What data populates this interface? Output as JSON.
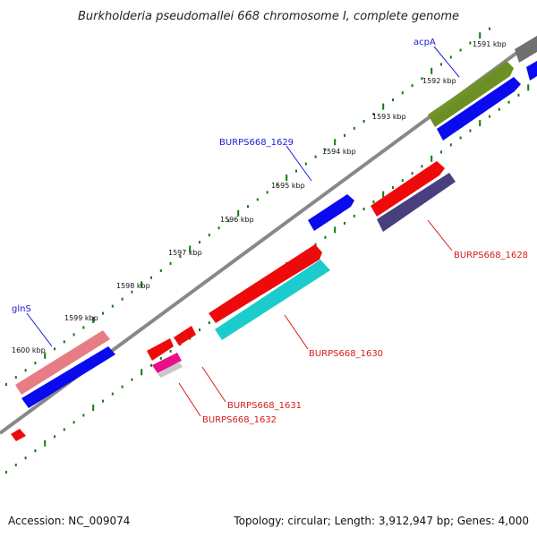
{
  "title": "Burkholderia pseudomallei 668 chromosome I, complete genome",
  "footer": {
    "accession": "Accession: NC_009074",
    "summary": "Topology: circular; Length: 3,912,947 bp; Genes: 4,000"
  },
  "scale_labels": [
    "1591 kbp",
    "1592 kbp",
    "1593 kbp",
    "1594 kbp",
    "1595 kbp",
    "1596 kbp",
    "1597 kbp",
    "1598 kbp",
    "1599 kbp",
    "1600 kbp"
  ],
  "gene_labels": {
    "acpA": "acpA",
    "burps1629": "BURPS668_1629",
    "burps1628": "BURPS668_1628",
    "burps1630": "BURPS668_1630",
    "burps1631": "BURPS668_1631",
    "burps1632": "BURPS668_1632",
    "glnS": "glnS"
  },
  "colors": {
    "backbone": "#888888",
    "blue": "#0a0aee",
    "red": "#ee0a0a",
    "cyan": "#1ccccc",
    "olive": "#6b8e23",
    "slate": "#48407e",
    "pink": "#e87c84",
    "magenta": "#e8108a",
    "gray": "#707070",
    "tick": "#0e7a0e",
    "label_blue": "#1a1ad6",
    "label_red": "#d61a1a"
  }
}
